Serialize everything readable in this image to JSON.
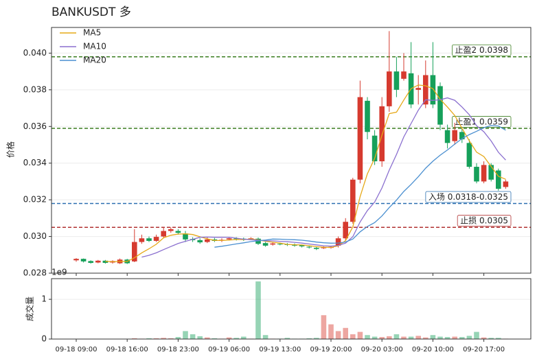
{
  "chart_data": [
    {
      "type": "candlestick",
      "title": "BANKUSDT 多",
      "ylabel": "价格",
      "categories": [
        "09-18 09:00",
        null,
        null,
        null,
        null,
        null,
        null,
        "09-18 16:00",
        null,
        null,
        null,
        null,
        null,
        null,
        "09-18 23:00",
        null,
        null,
        null,
        null,
        null,
        null,
        "09-19 06:00",
        null,
        null,
        null,
        null,
        null,
        null,
        "09-19 13:00",
        null,
        null,
        null,
        null,
        null,
        null,
        "09-19 20:00",
        null,
        null,
        null,
        null,
        null,
        null,
        "09-20 03:00",
        null,
        null,
        null,
        null,
        null,
        null,
        "09-20 10:00",
        null,
        null,
        null,
        null,
        null,
        null,
        "09-20 17:00",
        null,
        null,
        null
      ],
      "open": [
        0.0287,
        0.02878,
        0.02866,
        0.02858,
        0.02868,
        0.02858,
        0.02854,
        0.02874,
        0.02864,
        0.0297,
        0.0299,
        0.02976,
        0.03,
        0.0303,
        0.0303,
        0.03016,
        0.02986,
        0.0298,
        0.0297,
        0.02984,
        0.02978,
        0.02984,
        0.0299,
        0.02988,
        0.02986,
        0.02988,
        0.02964,
        0.02956,
        0.0296,
        0.02958,
        0.02956,
        0.02952,
        0.02944,
        0.02938,
        0.02936,
        0.02938,
        0.0295,
        0.0299,
        0.0308,
        0.0331,
        0.0374,
        0.0355,
        0.0341,
        0.0371,
        0.039,
        0.0386,
        0.0389,
        0.038,
        0.0372,
        0.0388,
        0.0382,
        0.0358,
        0.0352,
        0.0357,
        0.0351,
        0.0338,
        0.033,
        0.0339,
        0.0336,
        0.0327
      ],
      "high": [
        0.02882,
        0.0288,
        0.0287,
        0.02872,
        0.02872,
        0.0287,
        0.0288,
        0.02878,
        0.0304,
        0.0301,
        0.03,
        0.0301,
        0.0305,
        0.0305,
        0.0304,
        0.0303,
        0.02996,
        0.0299,
        0.02996,
        0.02992,
        0.0299,
        0.02996,
        0.02996,
        0.02994,
        0.02996,
        0.02994,
        0.0297,
        0.02968,
        0.02966,
        0.02964,
        0.02962,
        0.02956,
        0.0295,
        0.02944,
        0.02946,
        0.0295,
        0.03,
        0.031,
        0.0332,
        0.0385,
        0.0376,
        0.0358,
        0.0376,
        0.0412,
        0.0398,
        0.04,
        0.0406,
        0.0388,
        0.0396,
        0.0406,
        0.0384,
        0.0361,
        0.0362,
        0.0359,
        0.0353,
        0.034,
        0.0341,
        0.034,
        0.0337,
        0.0331
      ],
      "low": [
        0.02862,
        0.02858,
        0.02852,
        0.02854,
        0.02852,
        0.02852,
        0.0285,
        0.0285,
        0.0286,
        0.0296,
        0.0297,
        0.0297,
        0.0299,
        0.0302,
        0.0301,
        0.0297,
        0.0297,
        0.0296,
        0.02964,
        0.0297,
        0.0297,
        0.02978,
        0.02978,
        0.02976,
        0.0298,
        0.02954,
        0.02944,
        0.0295,
        0.02952,
        0.02948,
        0.02944,
        0.0294,
        0.02934,
        0.02926,
        0.02932,
        0.02934,
        0.0294,
        0.0298,
        0.0307,
        0.0329,
        0.0353,
        0.0339,
        0.0338,
        0.0368,
        0.0376,
        0.0385,
        0.037,
        0.0372,
        0.037,
        0.037,
        0.0358,
        0.0348,
        0.035,
        0.0351,
        0.0337,
        0.0329,
        0.0329,
        0.033,
        0.0325,
        0.0326
      ],
      "close": [
        0.02878,
        0.02864,
        0.02856,
        0.02868,
        0.02856,
        0.02866,
        0.02874,
        0.02854,
        0.0297,
        0.0299,
        0.02976,
        0.02998,
        0.0303,
        0.0304,
        0.0302,
        0.02984,
        0.0298,
        0.02968,
        0.02984,
        0.02976,
        0.02982,
        0.0299,
        0.02986,
        0.02982,
        0.0299,
        0.0296,
        0.0295,
        0.02962,
        0.02958,
        0.02954,
        0.0295,
        0.02946,
        0.0294,
        0.02932,
        0.0294,
        0.02944,
        0.0299,
        0.0308,
        0.0331,
        0.0376,
        0.0357,
        0.0341,
        0.0371,
        0.039,
        0.038,
        0.039,
        0.0372,
        0.0381,
        0.0388,
        0.0372,
        0.0361,
        0.0351,
        0.0358,
        0.0353,
        0.0338,
        0.033,
        0.0339,
        0.0331,
        0.0326,
        0.033
      ],
      "up_color": "#d63a2f",
      "down_color": "#16a05a",
      "series": [
        {
          "name": "MA5",
          "color": "#e6a817",
          "values": [
            null,
            null,
            null,
            null,
            0.028644,
            0.02862,
            0.02864,
            0.028636,
            0.02884,
            0.029108,
            0.029328,
            0.029576,
            0.029928,
            0.030068,
            0.030128,
            0.030144,
            0.030108,
            0.029984,
            0.029872,
            0.029784,
            0.02978,
            0.0298,
            0.029836,
            0.029832,
            0.02986,
            0.029816,
            0.029736,
            0.029688,
            0.02964,
            0.029568,
            0.029548,
            0.02954,
            0.029496,
            0.029444,
            0.029416,
            0.029404,
            0.029492,
            0.029772,
            0.030528,
            0.032168,
            0.03342,
            0.03426,
            0.03552,
            0.0367,
            0.03678,
            0.03744,
            0.03806,
            0.03826,
            0.03822,
            0.03806,
            0.03748,
            0.03706,
            0.0366,
            0.0359,
            0.03522,
            0.0346,
            0.03436,
            0.03382,
            0.03328,
            0.03312
          ]
        },
        {
          "name": "MA10",
          "color": "#8a6fcf",
          "values": [
            null,
            null,
            null,
            null,
            null,
            null,
            null,
            null,
            null,
            0.028876,
            0.028974,
            0.029108,
            0.029282,
            0.029454,
            0.029618,
            0.029736,
            0.029842,
            0.029956,
            0.02997,
            0.029956,
            0.029962,
            0.029954,
            0.02991,
            0.029852,
            0.029822,
            0.029798,
            0.029768,
            0.029762,
            0.029736,
            0.029714,
            0.029682,
            0.029638,
            0.029592,
            0.029542,
            0.029492,
            0.029476,
            0.029516,
            0.029634,
            0.029986,
            0.030792,
            0.031412,
            0.031876,
            0.032646,
            0.033614,
            0.034474,
            0.03543,
            0.03616,
            0.03689,
            0.03746,
            0.03742,
            0.03746,
            0.03756,
            0.03743,
            0.03706,
            0.03664,
            0.03604,
            0.03571,
            0.03521,
            0.03459,
            0.03417
          ]
        },
        {
          "name": "MA20",
          "color": "#4a8fd0",
          "values": [
            null,
            null,
            null,
            null,
            null,
            null,
            null,
            null,
            null,
            null,
            null,
            null,
            null,
            null,
            null,
            null,
            null,
            null,
            null,
            0.029416,
            0.029468,
            0.029531,
            0.029596,
            0.029653,
            0.02972,
            0.029767,
            0.029805,
            0.029859,
            0.029853,
            0.029835,
            0.029822,
            0.029796,
            0.029751,
            0.029697,
            0.029657,
            0.029637,
            0.029642,
            0.029698,
            0.029861,
            0.030253,
            0.030547,
            0.030757,
            0.031119,
            0.031578,
            0.031983,
            0.032453,
            0.032838,
            0.033262,
            0.033723,
            0.034106,
            0.034436,
            0.034718,
            0.035038,
            0.035337,
            0.035557,
            0.035735,
            0.035935,
            0.03605,
            0.036025,
            0.035795
          ]
        }
      ],
      "hlines": [
        {
          "label": "止盈2 0.0398",
          "value": 0.0398,
          "color": "#3a7d1f"
        },
        {
          "label": "止盈1 0.0359",
          "value": 0.0359,
          "color": "#3a7d1f"
        },
        {
          "label": "入场 0.0318-0.0325",
          "value": 0.0318,
          "color": "#2a6fb0"
        },
        {
          "label": "止损 0.0305",
          "value": 0.0305,
          "color": "#b03030"
        }
      ],
      "ylim": [
        0.028,
        0.0414
      ],
      "yticks": [
        0.028,
        {
          "value": 0.03,
          "label": "0.030"
        },
        0.032,
        0.034,
        0.036,
        0.038,
        {
          "value": 0.04,
          "label": "0.040"
        }
      ],
      "grid": true,
      "legend": "upper left"
    },
    {
      "type": "bar",
      "ylabel": "成交量",
      "offset_label": "1e9",
      "values": [
        0.005,
        0.005,
        0.005,
        0.005,
        0.005,
        0.005,
        0.005,
        0.005,
        0.02,
        0.01,
        0.02,
        0.02,
        0.03,
        0.02,
        0.05,
        0.2,
        0.12,
        0.07,
        0.04,
        0.02,
        0.01,
        0.04,
        0.03,
        0.06,
        0.01,
        1.45,
        0.1,
        0.01,
        0.01,
        0.03,
        0.01,
        0.01,
        0.02,
        0.03,
        0.6,
        0.37,
        0.2,
        0.28,
        0.12,
        0.18,
        0.1,
        0.06,
        0.05,
        0.07,
        0.12,
        0.06,
        0.06,
        0.08,
        0.04,
        0.1,
        0.06,
        0.05,
        0.06,
        0.05,
        0.08,
        0.18,
        0.04,
        0.03,
        0.03,
        0.01
      ],
      "ylim": [
        0,
        1.52
      ],
      "yticks": [
        0,
        1
      ],
      "grid": true
    }
  ]
}
